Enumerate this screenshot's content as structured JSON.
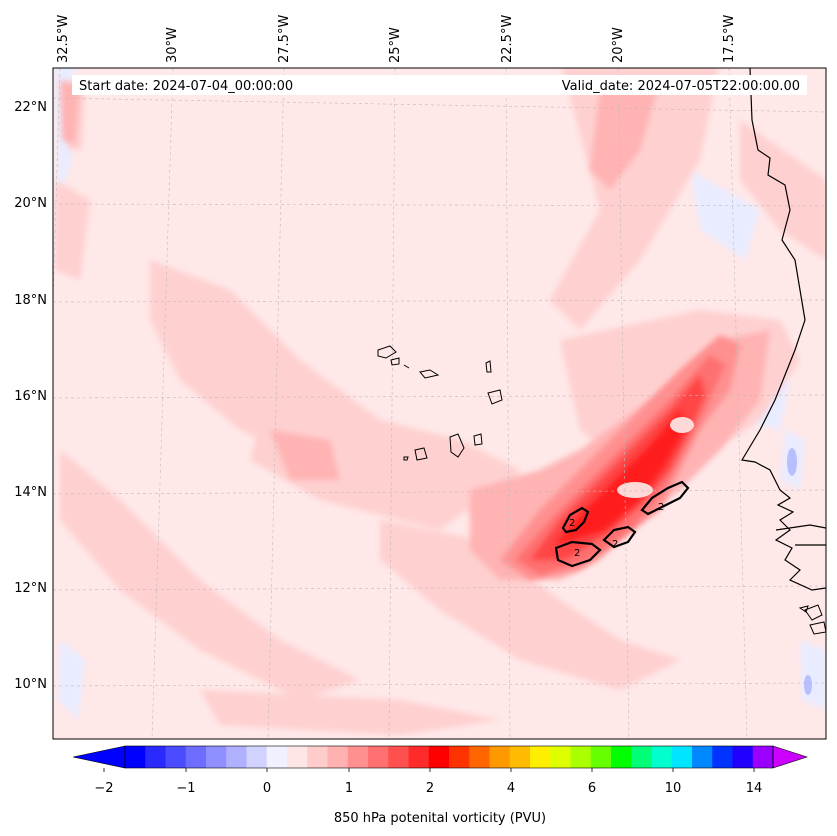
{
  "header": {
    "start_date": "Start date: 2024-07-04_00:00:00",
    "valid_date": "Valid_date: 2024-07-05T22:00:00.00"
  },
  "map": {
    "longitude_labels": [
      "32.5°W",
      "30°W",
      "27.5°W",
      "25°W",
      "22.5°W",
      "20°W",
      "17.5°W"
    ],
    "latitude_labels": [
      "22°N",
      "20°N",
      "18°N",
      "16°N",
      "14°N",
      "12°N",
      "10°N"
    ],
    "contour_labels": [
      "2",
      "2",
      "2",
      "2"
    ],
    "colors": {
      "land_line": "#000000",
      "grid": "#bbbbbb",
      "pv_0": "#ffe8e8",
      "pv_025": "#ffd0d0",
      "pv_05": "#ffb3b3",
      "pv_075": "#ff9090",
      "pv_1": "#ff7070",
      "pv_15": "#ff4545",
      "pv_2": "#ff1a1a",
      "neg": "#e8ecff"
    }
  },
  "colorbar": {
    "label": "850 hPa potenital vorticity (PVU)",
    "tick_labels": [
      "−2",
      "−1",
      "0",
      "1",
      "2",
      "4",
      "6",
      "10",
      "14"
    ],
    "colors": [
      "#0000ff",
      "#2a2aff",
      "#4b4bff",
      "#6d6dff",
      "#8f8fff",
      "#b0b0ff",
      "#d2d2ff",
      "#f0f0ff",
      "#ffe6e6",
      "#ffcccc",
      "#ffb0b0",
      "#ff9090",
      "#ff7070",
      "#ff5050",
      "#ff2b2b",
      "#ff0000",
      "#ff3300",
      "#ff6600",
      "#ff9900",
      "#ffbb00",
      "#ffee00",
      "#ddff00",
      "#aaff00",
      "#66ff00",
      "#00ff00",
      "#00ff77",
      "#00ffcc",
      "#00e5ff",
      "#0088ff",
      "#0033ff",
      "#2200ff",
      "#9900ff"
    ],
    "under_color": "#0000ff",
    "over_color": "#cc00ff"
  }
}
